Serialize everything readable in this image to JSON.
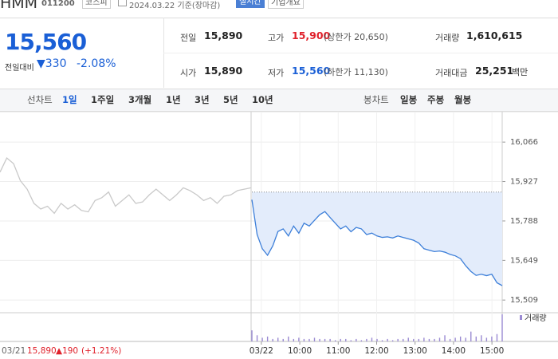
{
  "header": {
    "name": "HMM",
    "code": "011200",
    "market": "코스피",
    "date": "2024.03.22 기준(장마감)",
    "realtime": "실시간",
    "company_info": "기업개요"
  },
  "quote": {
    "price": "15,560",
    "change_label": "전일대비",
    "change": "▼330",
    "change_pct": "-2.08%"
  },
  "stats": [
    [
      {
        "label": "전일",
        "value": "15,890"
      },
      {
        "label": "고가",
        "value": "15,900",
        "note": "(상한가 20,650)",
        "color": "#e0202a"
      },
      {
        "label": "거래량",
        "value": "1,610,615"
      }
    ],
    [
      {
        "label": "시가",
        "value": "15,890"
      },
      {
        "label": "저가",
        "value": "15,560",
        "note": "(하한가 11,130)",
        "color": "#1a5fd6"
      },
      {
        "label": "거래대금",
        "value": "25,251",
        "unit": "백만"
      }
    ]
  ],
  "tabs": {
    "line_label": "선차트",
    "line_periods": [
      "1일",
      "1주일",
      "3개월",
      "1년",
      "3년",
      "5년",
      "10년"
    ],
    "candle_label": "봉차트",
    "candle_periods": [
      "일봉",
      "주봉",
      "월봉"
    ]
  },
  "chart": {
    "type": "line",
    "ylim": [
      15470,
      16117
    ],
    "yticks": [
      {
        "value": 16066,
        "label": "16,066"
      },
      {
        "value": 15927,
        "label": "15,927"
      },
      {
        "value": 15788,
        "label": "15,788"
      },
      {
        "value": 15649,
        "label": "15,649"
      },
      {
        "value": 15509,
        "label": "15,509"
      }
    ],
    "xlim": [
      524,
      916
    ],
    "xticks": [
      {
        "value": 540,
        "label": "03/22"
      },
      {
        "value": 600,
        "label": "10:00"
      },
      {
        "value": 660,
        "label": "11:00"
      },
      {
        "value": 720,
        "label": "12:00"
      },
      {
        "value": 780,
        "label": "13:00"
      },
      {
        "value": 840,
        "label": "14:00"
      },
      {
        "value": 900,
        "label": "15:00"
      }
    ],
    "reference_line": 15890,
    "previous": {
      "color": "#c9c9c9",
      "values": [
        15960,
        16010,
        15990,
        15930,
        15900,
        15850,
        15830,
        15840,
        15815,
        15850,
        15830,
        15845,
        15825,
        15820,
        15860,
        15870,
        15890,
        15840,
        15860,
        15880,
        15850,
        15855,
        15880,
        15900,
        15880,
        15860,
        15880,
        15905,
        15895,
        15880,
        15860,
        15870,
        15850,
        15875,
        15880,
        15895,
        15900,
        15905
      ]
    },
    "today": {
      "color": "#3d7fd9",
      "fill": "#e3ecfb",
      "values": [
        15863,
        15740,
        15690,
        15667,
        15700,
        15751,
        15760,
        15735,
        15770,
        15745,
        15780,
        15770,
        15790,
        15810,
        15821,
        15800,
        15780,
        15760,
        15770,
        15750,
        15765,
        15760,
        15740,
        15745,
        15735,
        15730,
        15732,
        15728,
        15735,
        15730,
        15725,
        15720,
        15710,
        15690,
        15685,
        15680,
        15682,
        15678,
        15670,
        15665,
        15655,
        15630,
        15610,
        15596,
        15600,
        15595,
        15600,
        15570,
        15560
      ]
    },
    "volume": {
      "label": "거래량",
      "color": "#9a8ad2",
      "values": [
        9,
        5,
        3,
        4,
        2,
        3,
        2,
        4,
        2,
        3,
        2,
        2,
        3,
        2,
        2,
        2,
        1,
        2,
        2,
        1,
        2,
        1,
        2,
        3,
        2,
        1,
        2,
        1,
        2,
        2,
        3,
        2,
        2,
        3,
        2,
        2,
        3,
        5,
        2,
        3,
        4,
        3,
        8,
        4,
        5,
        3,
        4,
        6,
        22
      ]
    },
    "previous_day": {
      "date": "03/21",
      "close": "15,890",
      "change": "▲190",
      "change_pct": "(+1.21%)"
    }
  }
}
